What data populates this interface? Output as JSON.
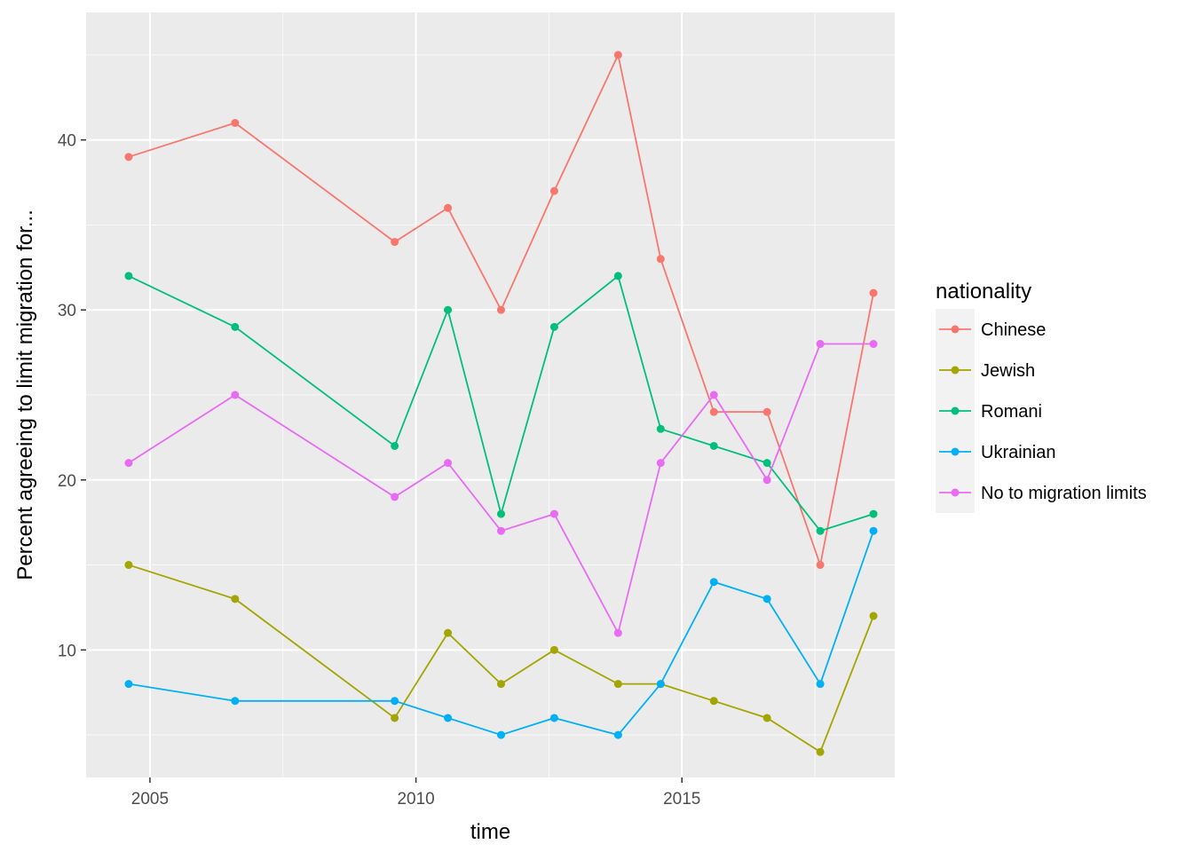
{
  "chart_data": {
    "type": "line",
    "title": "",
    "xlabel": "time",
    "ylabel": "Percent agreeing to limit migration for...",
    "xlim": [
      2003.8,
      2019.0
    ],
    "ylim": [
      2.5,
      47.5
    ],
    "x_ticks": [
      2005,
      2010,
      2015
    ],
    "x_tick_labels": [
      "2005",
      "2010",
      "2015"
    ],
    "y_ticks": [
      10,
      20,
      30,
      40
    ],
    "y_tick_labels": [
      "10",
      "20",
      "30",
      "40"
    ],
    "grid": true,
    "background": "#ebebeb",
    "legend_position": "right",
    "legend_title": "nationality",
    "x": [
      2004.6,
      2006.6,
      2009.6,
      2010.6,
      2011.6,
      2012.6,
      2013.8,
      2014.6,
      2015.6,
      2016.6,
      2017.6,
      2018.6
    ],
    "series": [
      {
        "name": "Chinese",
        "color": "#f8766d",
        "values": [
          39,
          41,
          34,
          36,
          30,
          37,
          45,
          33,
          24,
          24,
          15,
          31
        ]
      },
      {
        "name": "Jewish",
        "color": "#a3a500",
        "values": [
          15,
          13,
          6,
          11,
          8,
          10,
          8,
          8,
          7,
          6,
          4,
          12
        ]
      },
      {
        "name": "Romani",
        "color": "#00bf7d",
        "values": [
          32,
          29,
          22,
          30,
          18,
          29,
          32,
          23,
          22,
          21,
          17,
          18
        ]
      },
      {
        "name": "Ukrainian",
        "color": "#00b0f6",
        "values": [
          8,
          7,
          7,
          6,
          5,
          6,
          5,
          8,
          14,
          13,
          8,
          17
        ]
      },
      {
        "name": "No to migration limits",
        "color": "#e76bf3",
        "values": [
          21,
          25,
          19,
          21,
          17,
          18,
          11,
          21,
          25,
          20,
          28,
          28
        ]
      }
    ]
  }
}
